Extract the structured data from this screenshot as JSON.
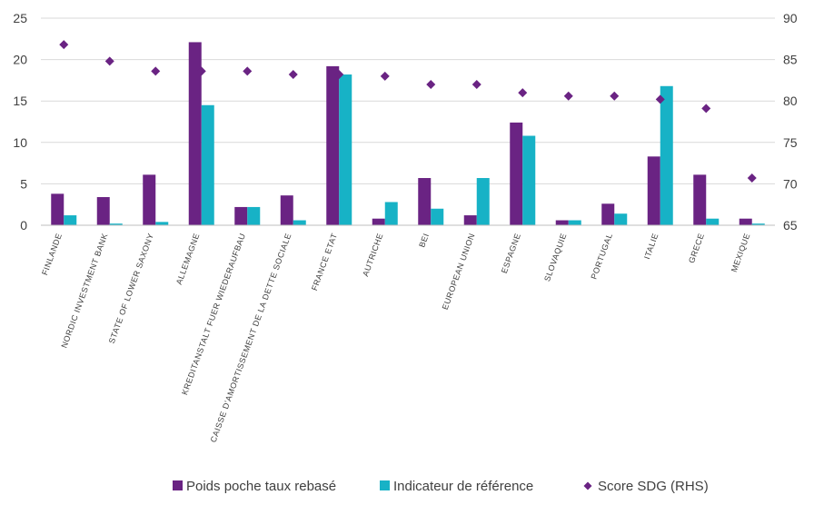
{
  "chart_data": {
    "type": "bar",
    "categories": [
      "FINLANDE",
      "NORDIC INVESTMENT BANK",
      "STATE OF LOWER SAXONY",
      "ALLEMAGNE",
      "KREDITANSTALT FUER WIEDERAUFBAU",
      "CAISSE D'AMORTISSEMENT DE LA DETTE SOCIALE",
      "FRANCE ETAT",
      "AUTRICHE",
      "BEI",
      "EUROPEAN UNION",
      "ESPAGNE",
      "SLOVAQUIE",
      "PORTUGAL",
      "ITALIE",
      "GRECE",
      "MEXIQUE"
    ],
    "series": [
      {
        "name": "Poids poche taux rebasé",
        "color": "#6a2383",
        "type": "bar",
        "axis": "left",
        "values": [
          3.8,
          3.4,
          6.1,
          22.1,
          2.2,
          3.6,
          19.2,
          0.8,
          5.7,
          1.2,
          12.4,
          0.6,
          2.6,
          8.3,
          6.1,
          0.8
        ]
      },
      {
        "name": "Indicateur de référence",
        "color": "#17b2c6",
        "type": "bar",
        "axis": "left",
        "values": [
          1.2,
          0.2,
          0.4,
          14.5,
          2.2,
          0.6,
          18.2,
          2.8,
          2.0,
          5.7,
          10.8,
          0.6,
          1.4,
          16.8,
          0.8,
          0.2
        ]
      },
      {
        "name": "Score SDG (RHS)",
        "color": "#6a2383",
        "type": "scatter",
        "axis": "right",
        "values": [
          86.8,
          84.8,
          83.6,
          83.6,
          83.6,
          83.2,
          83.2,
          83.0,
          82.0,
          82.0,
          81.0,
          80.6,
          80.6,
          80.2,
          79.1,
          70.7
        ]
      }
    ],
    "y_left": {
      "min": 0,
      "max": 25,
      "ticks": [
        "0",
        "5",
        "10",
        "15",
        "20",
        "25"
      ]
    },
    "y_right": {
      "min": 65,
      "max": 90,
      "ticks": [
        "65",
        "70",
        "75",
        "80",
        "85",
        "90"
      ]
    },
    "grid": true,
    "legend_position": "bottom"
  },
  "legend": {
    "items": [
      {
        "label": "Poids poche taux rebasé",
        "color": "#6a2383",
        "shape": "square"
      },
      {
        "label": "Indicateur de référence",
        "color": "#17b2c6",
        "shape": "square"
      },
      {
        "label": "Score SDG (RHS)",
        "color": "#6a2383",
        "shape": "diamond"
      }
    ]
  }
}
